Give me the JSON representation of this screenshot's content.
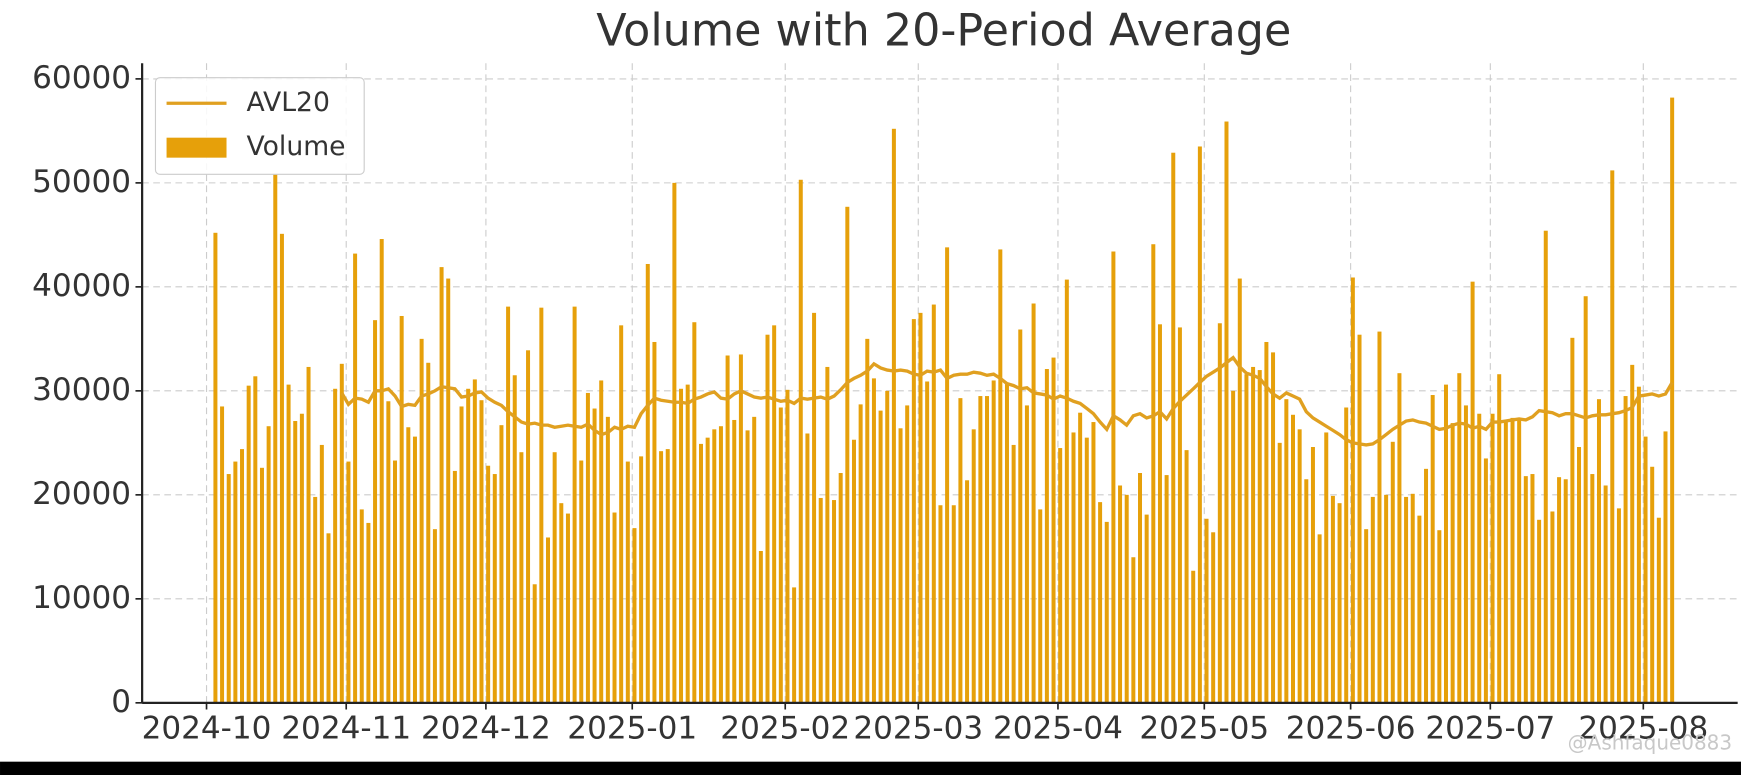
{
  "chart_data": {
    "type": "bar",
    "title": "Volume with 20-Period Average",
    "watermark": "@Ashfaque0883",
    "categories": [
      "2024-10",
      null,
      null,
      null,
      null,
      null,
      null,
      null,
      null,
      null,
      null,
      null,
      null,
      null,
      null,
      null,
      null,
      null,
      null,
      null,
      null,
      "2024-11",
      null,
      null,
      null,
      null,
      null,
      null,
      null,
      null,
      null,
      null,
      null,
      null,
      null,
      null,
      null,
      null,
      null,
      null,
      null,
      null,
      "2024-12",
      null,
      null,
      null,
      null,
      null,
      null,
      null,
      null,
      null,
      null,
      null,
      null,
      null,
      null,
      null,
      null,
      null,
      null,
      null,
      null,
      null,
      "2025-01",
      null,
      null,
      null,
      null,
      null,
      null,
      null,
      null,
      null,
      null,
      null,
      null,
      null,
      null,
      null,
      null,
      null,
      null,
      null,
      null,
      null,
      null,
      "2025-02",
      null,
      null,
      null,
      null,
      null,
      null,
      null,
      null,
      null,
      null,
      null,
      null,
      null,
      null,
      null,
      null,
      null,
      null,
      null,
      "2025-03",
      null,
      null,
      null,
      null,
      null,
      null,
      null,
      null,
      null,
      null,
      null,
      null,
      null,
      null,
      null,
      null,
      null,
      null,
      null,
      null,
      "2025-04",
      null,
      null,
      null,
      null,
      null,
      null,
      null,
      null,
      null,
      null,
      null,
      null,
      null,
      null,
      null,
      null,
      null,
      null,
      null,
      null,
      null,
      "2025-05",
      null,
      null,
      null,
      null,
      null,
      null,
      null,
      null,
      null,
      null,
      null,
      null,
      null,
      null,
      null,
      null,
      null,
      null,
      null,
      null,
      null,
      "2025-06",
      null,
      null,
      null,
      null,
      null,
      null,
      null,
      null,
      null,
      null,
      null,
      null,
      null,
      null,
      null,
      null,
      null,
      null,
      null,
      null,
      "2025-07",
      null,
      null,
      null,
      null,
      null,
      null,
      null,
      null,
      null,
      null,
      null,
      null,
      null,
      null,
      null,
      null,
      null,
      null,
      null,
      null,
      null,
      null,
      "2025-08",
      null,
      null,
      null
    ],
    "series": [
      {
        "name": "Volume",
        "type": "bar",
        "color": "#e6a00a",
        "values": [
          45200,
          28500,
          22000,
          23200,
          24400,
          30500,
          31400,
          22600,
          26600,
          50800,
          45100,
          30600,
          27100,
          27800,
          32300,
          19800,
          24800,
          16300,
          30200,
          32600,
          23200,
          43200,
          18600,
          17300,
          36800,
          44600,
          29000,
          23300,
          37200,
          26500,
          25600,
          35000,
          32700,
          16700,
          41900,
          40800,
          22300,
          28500,
          30200,
          31100,
          29100,
          22800,
          22000,
          26700,
          38100,
          31500,
          24100,
          33900,
          11400,
          38000,
          15900,
          24100,
          19200,
          18200,
          38100,
          23300,
          29800,
          28300,
          31000,
          27500,
          18300,
          36300,
          23200,
          16800,
          23700,
          42200,
          34700,
          24200,
          24400,
          50000,
          30200,
          30600,
          36600,
          24900,
          25500,
          26300,
          26600,
          33400,
          27200,
          33500,
          26200,
          27500,
          14600,
          35400,
          36300,
          28400,
          30100,
          11100,
          50300,
          25900,
          37500,
          19700,
          32300,
          19500,
          22100,
          47700,
          25300,
          28700,
          35000,
          31200,
          28100,
          30000,
          55200,
          26400,
          28600,
          36900,
          37500,
          30900,
          38300,
          19000,
          43800,
          19000,
          29300,
          21400,
          26300,
          29500,
          29500,
          31000,
          43600,
          30700,
          24800,
          35900,
          28600,
          38400,
          18600,
          32100,
          33200,
          24500,
          40700,
          26000,
          27900,
          25500,
          27000,
          19300,
          17400,
          43400,
          20900,
          20000,
          14000,
          22100,
          18100,
          44100,
          36400,
          21900,
          52900,
          36100,
          24300,
          12700,
          53500,
          17700,
          16400,
          36500,
          55900,
          30000,
          40800,
          31600,
          32300,
          32000,
          34700,
          33700,
          25000,
          29200,
          27700,
          26300,
          21500,
          24600,
          16200,
          26000,
          19900,
          19200,
          28400,
          40900,
          35400,
          16700,
          19800,
          35700,
          20000,
          25100,
          31700,
          19800,
          20100,
          18000,
          22500,
          29600,
          16600,
          30600,
          26900,
          31700,
          28600,
          40500,
          27800,
          23500,
          27800,
          31600,
          27100,
          27400,
          27300,
          21800,
          22000,
          17600,
          45400,
          18400,
          21700,
          21500,
          35100,
          24600,
          39100,
          22000,
          29200,
          20900,
          51200,
          18700,
          29500,
          32500,
          30400,
          25600,
          22700,
          17800,
          26100,
          58200
        ]
      },
      {
        "name": "AVL20",
        "type": "line",
        "color": "#e0a020",
        "values": [
          null,
          null,
          null,
          null,
          null,
          null,
          null,
          null,
          null,
          null,
          null,
          null,
          null,
          null,
          null,
          null,
          null,
          null,
          null,
          29800,
          28700,
          29300,
          29200,
          28900,
          30000,
          30000,
          30200,
          29500,
          28500,
          28700,
          28600,
          29500,
          29700,
          30000,
          30400,
          30300,
          30200,
          29400,
          29500,
          29800,
          29900,
          29300,
          28900,
          28600,
          28000,
          27500,
          27000,
          26800,
          26900,
          26700,
          26700,
          26500,
          26600,
          26700,
          26600,
          26500,
          26800,
          26200,
          25800,
          26000,
          26500,
          26300,
          26600,
          26500,
          27800,
          28600,
          29300,
          29100,
          29000,
          28900,
          28900,
          28800,
          29200,
          29400,
          29700,
          29900,
          29300,
          29200,
          29700,
          30000,
          29700,
          29400,
          29300,
          29400,
          29200,
          29000,
          29100,
          28800,
          29300,
          29200,
          29300,
          29400,
          29200,
          29500,
          30100,
          30800,
          31200,
          31500,
          31900,
          32600,
          32200,
          32000,
          31900,
          32000,
          31900,
          31600,
          31500,
          31900,
          31800,
          32000,
          31200,
          31500,
          31600,
          31600,
          31800,
          31700,
          31500,
          31600,
          31200,
          30700,
          30500,
          30200,
          30300,
          29800,
          29700,
          29600,
          29200,
          29500,
          29300,
          29000,
          28800,
          28300,
          27800,
          27000,
          26300,
          27600,
          27200,
          26700,
          27600,
          27800,
          27400,
          27600,
          28000,
          27300,
          28300,
          29000,
          29600,
          30200,
          30800,
          31400,
          31800,
          32200,
          32700,
          33200,
          32300,
          31700,
          31500,
          31200,
          30400,
          29700,
          29300,
          29800,
          29500,
          29200,
          28000,
          27400,
          27000,
          26600,
          26200,
          25800,
          25300,
          25000,
          24900,
          24800,
          24900,
          25300,
          25800,
          26300,
          26700,
          27100,
          27200,
          27000,
          26900,
          26600,
          26300,
          26400,
          26700,
          26900,
          26800,
          26400,
          26600,
          26300,
          27000,
          27000,
          27100,
          27200,
          27300,
          27200,
          27500,
          28100,
          28000,
          27900,
          27600,
          27800,
          27800,
          27600,
          27400,
          27600,
          27700,
          27700,
          27800,
          27900,
          28100,
          28400,
          29500,
          29600,
          29700,
          29500,
          29700,
          30800
        ]
      }
    ],
    "ylim": [
      0,
      61500
    ],
    "yticks": [
      0,
      10000,
      20000,
      30000,
      40000,
      50000,
      60000
    ],
    "grid": true,
    "legend": "upper left"
  }
}
